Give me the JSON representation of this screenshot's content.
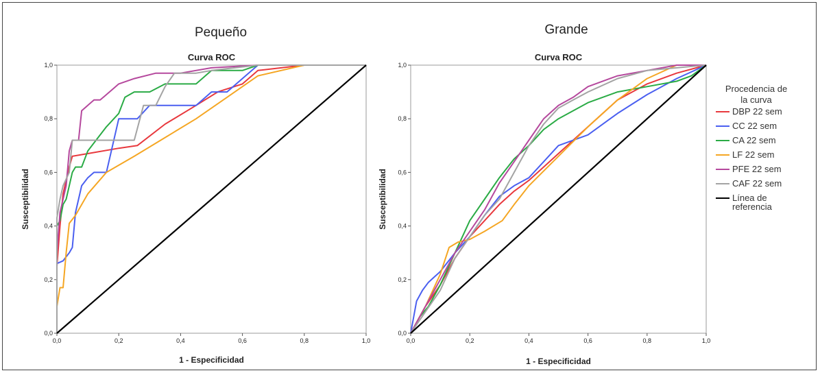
{
  "chart_data": [
    {
      "type": "line",
      "panel_title": "Pequeño",
      "title": "Curva ROC",
      "xlabel": "1 - Especificidad",
      "ylabel": "Susceptibilidad",
      "xlim": [
        0,
        1
      ],
      "ylim": [
        0,
        1
      ],
      "xticks": [
        "0,0",
        "0,2",
        "0,4",
        "0,6",
        "0,8",
        "1,0"
      ],
      "yticks": [
        "0,0",
        "0,2",
        "0,4",
        "0,6",
        "0,8",
        "1,0"
      ],
      "grid": false,
      "series": [
        {
          "name": "DBP 22 sem",
          "color": "#e8383d",
          "points": [
            [
              0,
              0
            ],
            [
              0,
              0.25
            ],
            [
              0.01,
              0.4
            ],
            [
              0.02,
              0.52
            ],
            [
              0.04,
              0.62
            ],
            [
              0.05,
              0.66
            ],
            [
              0.1,
              0.67
            ],
            [
              0.2,
              0.69
            ],
            [
              0.26,
              0.7
            ],
            [
              0.35,
              0.78
            ],
            [
              0.45,
              0.85
            ],
            [
              0.52,
              0.9
            ],
            [
              0.6,
              0.93
            ],
            [
              0.65,
              0.98
            ],
            [
              0.8,
              1
            ],
            [
              1,
              1
            ]
          ]
        },
        {
          "name": "CC 22 sem",
          "color": "#4a5ff0",
          "points": [
            [
              0,
              0
            ],
            [
              0,
              0.26
            ],
            [
              0.02,
              0.27
            ],
            [
              0.04,
              0.3
            ],
            [
              0.05,
              0.32
            ],
            [
              0.06,
              0.45
            ],
            [
              0.07,
              0.5
            ],
            [
              0.08,
              0.55
            ],
            [
              0.1,
              0.58
            ],
            [
              0.12,
              0.6
            ],
            [
              0.16,
              0.6
            ],
            [
              0.2,
              0.8
            ],
            [
              0.26,
              0.8
            ],
            [
              0.3,
              0.85
            ],
            [
              0.45,
              0.85
            ],
            [
              0.5,
              0.9
            ],
            [
              0.55,
              0.9
            ],
            [
              0.62,
              0.97
            ],
            [
              0.65,
              1
            ],
            [
              1,
              1
            ]
          ]
        },
        {
          "name": "CA 22 sem",
          "color": "#2aab45",
          "points": [
            [
              0,
              0
            ],
            [
              0,
              0.4
            ],
            [
              0.01,
              0.42
            ],
            [
              0.02,
              0.48
            ],
            [
              0.03,
              0.5
            ],
            [
              0.05,
              0.6
            ],
            [
              0.06,
              0.62
            ],
            [
              0.08,
              0.62
            ],
            [
              0.1,
              0.68
            ],
            [
              0.12,
              0.71
            ],
            [
              0.16,
              0.77
            ],
            [
              0.2,
              0.82
            ],
            [
              0.22,
              0.88
            ],
            [
              0.25,
              0.9
            ],
            [
              0.3,
              0.9
            ],
            [
              0.35,
              0.93
            ],
            [
              0.45,
              0.93
            ],
            [
              0.5,
              0.98
            ],
            [
              0.6,
              0.98
            ],
            [
              0.65,
              1
            ],
            [
              1,
              1
            ]
          ]
        },
        {
          "name": "LF 22 sem",
          "color": "#f5a623",
          "points": [
            [
              0,
              0
            ],
            [
              0,
              0.1
            ],
            [
              0.01,
              0.17
            ],
            [
              0.02,
              0.17
            ],
            [
              0.03,
              0.3
            ],
            [
              0.04,
              0.41
            ],
            [
              0.06,
              0.44
            ],
            [
              0.1,
              0.52
            ],
            [
              0.16,
              0.6
            ],
            [
              0.25,
              0.66
            ],
            [
              0.35,
              0.73
            ],
            [
              0.45,
              0.8
            ],
            [
              0.55,
              0.88
            ],
            [
              0.65,
              0.96
            ],
            [
              0.8,
              1
            ],
            [
              1,
              1
            ]
          ]
        },
        {
          "name": "PFE 22 sem",
          "color": "#b5489d",
          "points": [
            [
              0,
              0
            ],
            [
              0,
              0.3
            ],
            [
              0.01,
              0.45
            ],
            [
              0.02,
              0.5
            ],
            [
              0.03,
              0.55
            ],
            [
              0.04,
              0.68
            ],
            [
              0.05,
              0.72
            ],
            [
              0.07,
              0.72
            ],
            [
              0.08,
              0.83
            ],
            [
              0.12,
              0.87
            ],
            [
              0.14,
              0.87
            ],
            [
              0.16,
              0.89
            ],
            [
              0.2,
              0.93
            ],
            [
              0.25,
              0.95
            ],
            [
              0.32,
              0.97
            ],
            [
              0.4,
              0.97
            ],
            [
              0.5,
              0.99
            ],
            [
              0.65,
              1
            ],
            [
              1,
              1
            ]
          ]
        },
        {
          "name": "CAF 22 sem",
          "color": "#a3a3a3",
          "points": [
            [
              0,
              0
            ],
            [
              0,
              0.43
            ],
            [
              0.01,
              0.5
            ],
            [
              0.02,
              0.55
            ],
            [
              0.04,
              0.6
            ],
            [
              0.05,
              0.72
            ],
            [
              0.1,
              0.72
            ],
            [
              0.25,
              0.72
            ],
            [
              0.28,
              0.85
            ],
            [
              0.32,
              0.85
            ],
            [
              0.35,
              0.92
            ],
            [
              0.38,
              0.97
            ],
            [
              0.45,
              0.97
            ],
            [
              0.5,
              0.98
            ],
            [
              0.65,
              1
            ],
            [
              1,
              1
            ]
          ]
        },
        {
          "name": "Línea de referencia",
          "color": "#000000",
          "points": [
            [
              0,
              0
            ],
            [
              1,
              1
            ]
          ]
        }
      ]
    },
    {
      "type": "line",
      "panel_title": "Grande",
      "title": "Curva ROC",
      "xlabel": "1 - Especificidad",
      "ylabel": "Susceptibilidad",
      "xlim": [
        0,
        1
      ],
      "ylim": [
        0,
        1
      ],
      "xticks": [
        "0,0",
        "0,2",
        "0,4",
        "0,6",
        "0,8",
        "1,0"
      ],
      "yticks": [
        "0,0",
        "0,2",
        "0,4",
        "0,6",
        "0,8",
        "1,0"
      ],
      "grid": false,
      "legend_position": "right",
      "legend_title": [
        "Procedencia de",
        "la curva"
      ],
      "series": [
        {
          "name": "DBP 22 sem",
          "color": "#e8383d",
          "points": [
            [
              0,
              0
            ],
            [
              0.05,
              0.1
            ],
            [
              0.1,
              0.18
            ],
            [
              0.15,
              0.28
            ],
            [
              0.2,
              0.36
            ],
            [
              0.25,
              0.42
            ],
            [
              0.3,
              0.48
            ],
            [
              0.35,
              0.53
            ],
            [
              0.4,
              0.57
            ],
            [
              0.5,
              0.67
            ],
            [
              0.6,
              0.77
            ],
            [
              0.7,
              0.87
            ],
            [
              0.8,
              0.93
            ],
            [
              0.9,
              0.97
            ],
            [
              1,
              1
            ]
          ]
        },
        {
          "name": "CC 22 sem",
          "color": "#4a5ff0",
          "points": [
            [
              0,
              0
            ],
            [
              0.02,
              0.12
            ],
            [
              0.04,
              0.16
            ],
            [
              0.06,
              0.19
            ],
            [
              0.1,
              0.23
            ],
            [
              0.15,
              0.3
            ],
            [
              0.2,
              0.36
            ],
            [
              0.25,
              0.44
            ],
            [
              0.3,
              0.51
            ],
            [
              0.35,
              0.55
            ],
            [
              0.4,
              0.58
            ],
            [
              0.45,
              0.64
            ],
            [
              0.5,
              0.7
            ],
            [
              0.6,
              0.74
            ],
            [
              0.7,
              0.82
            ],
            [
              0.8,
              0.89
            ],
            [
              0.9,
              0.95
            ],
            [
              1,
              1
            ]
          ]
        },
        {
          "name": "CA 22 sem",
          "color": "#2aab45",
          "points": [
            [
              0,
              0
            ],
            [
              0.03,
              0.06
            ],
            [
              0.06,
              0.1
            ],
            [
              0.1,
              0.18
            ],
            [
              0.15,
              0.3
            ],
            [
              0.2,
              0.42
            ],
            [
              0.25,
              0.5
            ],
            [
              0.3,
              0.58
            ],
            [
              0.35,
              0.65
            ],
            [
              0.4,
              0.7
            ],
            [
              0.45,
              0.76
            ],
            [
              0.5,
              0.8
            ],
            [
              0.6,
              0.86
            ],
            [
              0.7,
              0.9
            ],
            [
              0.8,
              0.92
            ],
            [
              0.9,
              0.94
            ],
            [
              0.95,
              0.96
            ],
            [
              1,
              1
            ]
          ]
        },
        {
          "name": "LF 22 sem",
          "color": "#f5a623",
          "points": [
            [
              0,
              0
            ],
            [
              0.05,
              0.1
            ],
            [
              0.1,
              0.22
            ],
            [
              0.13,
              0.32
            ],
            [
              0.16,
              0.34
            ],
            [
              0.2,
              0.35
            ],
            [
              0.25,
              0.38
            ],
            [
              0.31,
              0.42
            ],
            [
              0.35,
              0.48
            ],
            [
              0.4,
              0.55
            ],
            [
              0.5,
              0.66
            ],
            [
              0.6,
              0.77
            ],
            [
              0.7,
              0.87
            ],
            [
              0.8,
              0.95
            ],
            [
              0.9,
              1
            ],
            [
              1,
              1
            ]
          ]
        },
        {
          "name": "PFE 22 sem",
          "color": "#b5489d",
          "points": [
            [
              0,
              0
            ],
            [
              0.05,
              0.1
            ],
            [
              0.1,
              0.2
            ],
            [
              0.15,
              0.3
            ],
            [
              0.2,
              0.38
            ],
            [
              0.25,
              0.46
            ],
            [
              0.3,
              0.56
            ],
            [
              0.35,
              0.64
            ],
            [
              0.4,
              0.72
            ],
            [
              0.45,
              0.8
            ],
            [
              0.5,
              0.85
            ],
            [
              0.55,
              0.88
            ],
            [
              0.6,
              0.92
            ],
            [
              0.7,
              0.96
            ],
            [
              0.8,
              0.98
            ],
            [
              0.9,
              1
            ],
            [
              1,
              1
            ]
          ]
        },
        {
          "name": "CAF 22 sem",
          "color": "#a3a3a3",
          "points": [
            [
              0,
              0
            ],
            [
              0.05,
              0.08
            ],
            [
              0.1,
              0.16
            ],
            [
              0.15,
              0.28
            ],
            [
              0.2,
              0.36
            ],
            [
              0.25,
              0.44
            ],
            [
              0.3,
              0.5
            ],
            [
              0.35,
              0.6
            ],
            [
              0.4,
              0.7
            ],
            [
              0.45,
              0.78
            ],
            [
              0.5,
              0.84
            ],
            [
              0.55,
              0.87
            ],
            [
              0.6,
              0.9
            ],
            [
              0.7,
              0.95
            ],
            [
              0.8,
              0.98
            ],
            [
              0.9,
              0.99
            ],
            [
              1,
              1
            ]
          ]
        },
        {
          "name": "Línea de referencia",
          "color": "#000000",
          "points": [
            [
              0,
              0
            ],
            [
              1,
              1
            ]
          ]
        }
      ]
    }
  ]
}
